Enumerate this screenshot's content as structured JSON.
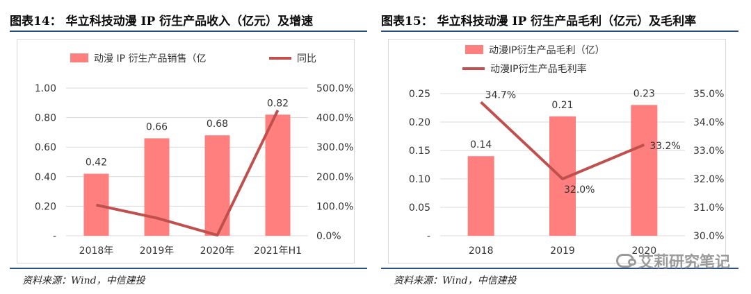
{
  "figures": [
    {
      "title": "图表14：  华立科技动漫 IP 衍生产品收入（亿元）及增速",
      "source": "资料来源：Wind，中信建投"
    },
    {
      "title": "图表15：  华立科技动漫 IP 衍生产品毛利（亿元）及毛利率",
      "source": "资料来源：Wind，中信建投"
    }
  ],
  "watermark": "艾莉研究笔记",
  "colors": {
    "bar": "#ff7f7f",
    "line": "#c0504d",
    "rule": "#2b4f81",
    "grid": "#d9d9d9"
  },
  "chart_data": [
    {
      "type": "bar",
      "categories": [
        "2018年",
        "2019年",
        "2020年",
        "2021年H1"
      ],
      "series": [
        {
          "name": "动漫 IP 衍生产品销售（亿",
          "type": "bar",
          "axis": "left",
          "values": [
            0.42,
            0.66,
            0.68,
            0.82
          ]
        },
        {
          "name": "同比",
          "type": "line",
          "axis": "right",
          "values": [
            104,
            60,
            2,
            425
          ]
        }
      ],
      "left_ticks": [
        "-",
        "0.20",
        "0.40",
        "0.60",
        "0.80",
        "1.00"
      ],
      "right_ticks": [
        "0.0%",
        "100.0%",
        "200.0%",
        "300.0%",
        "400.0%",
        "500.0%"
      ],
      "bar_labels": [
        "0.42",
        "0.66",
        "0.68",
        "0.82"
      ],
      "ylim_left": [
        0,
        1.0
      ],
      "ylim_right": [
        0,
        500
      ],
      "grid": true,
      "legend": "top"
    },
    {
      "type": "bar",
      "categories": [
        "2018",
        "2019",
        "2020"
      ],
      "series": [
        {
          "name": "动漫IP衍生产品毛利（亿）",
          "type": "bar",
          "axis": "left",
          "values": [
            0.14,
            0.21,
            0.23
          ]
        },
        {
          "name": "动漫IP衍生产品毛利率",
          "type": "line",
          "axis": "right",
          "values": [
            34.7,
            32.0,
            33.2
          ]
        }
      ],
      "left_ticks": [
        "-",
        "0.05",
        "0.10",
        "0.15",
        "0.20",
        "0.25"
      ],
      "right_ticks": [
        "30.0%",
        "31.0%",
        "32.0%",
        "33.0%",
        "34.0%",
        "35.0%"
      ],
      "bar_labels": [
        "0.14",
        "0.21",
        "0.23"
      ],
      "line_labels": [
        "34.7%",
        "32.0%",
        "33.2%"
      ],
      "ylim_left": [
        0,
        0.25
      ],
      "ylim_right": [
        30,
        35
      ],
      "grid": true,
      "legend": "top"
    }
  ]
}
